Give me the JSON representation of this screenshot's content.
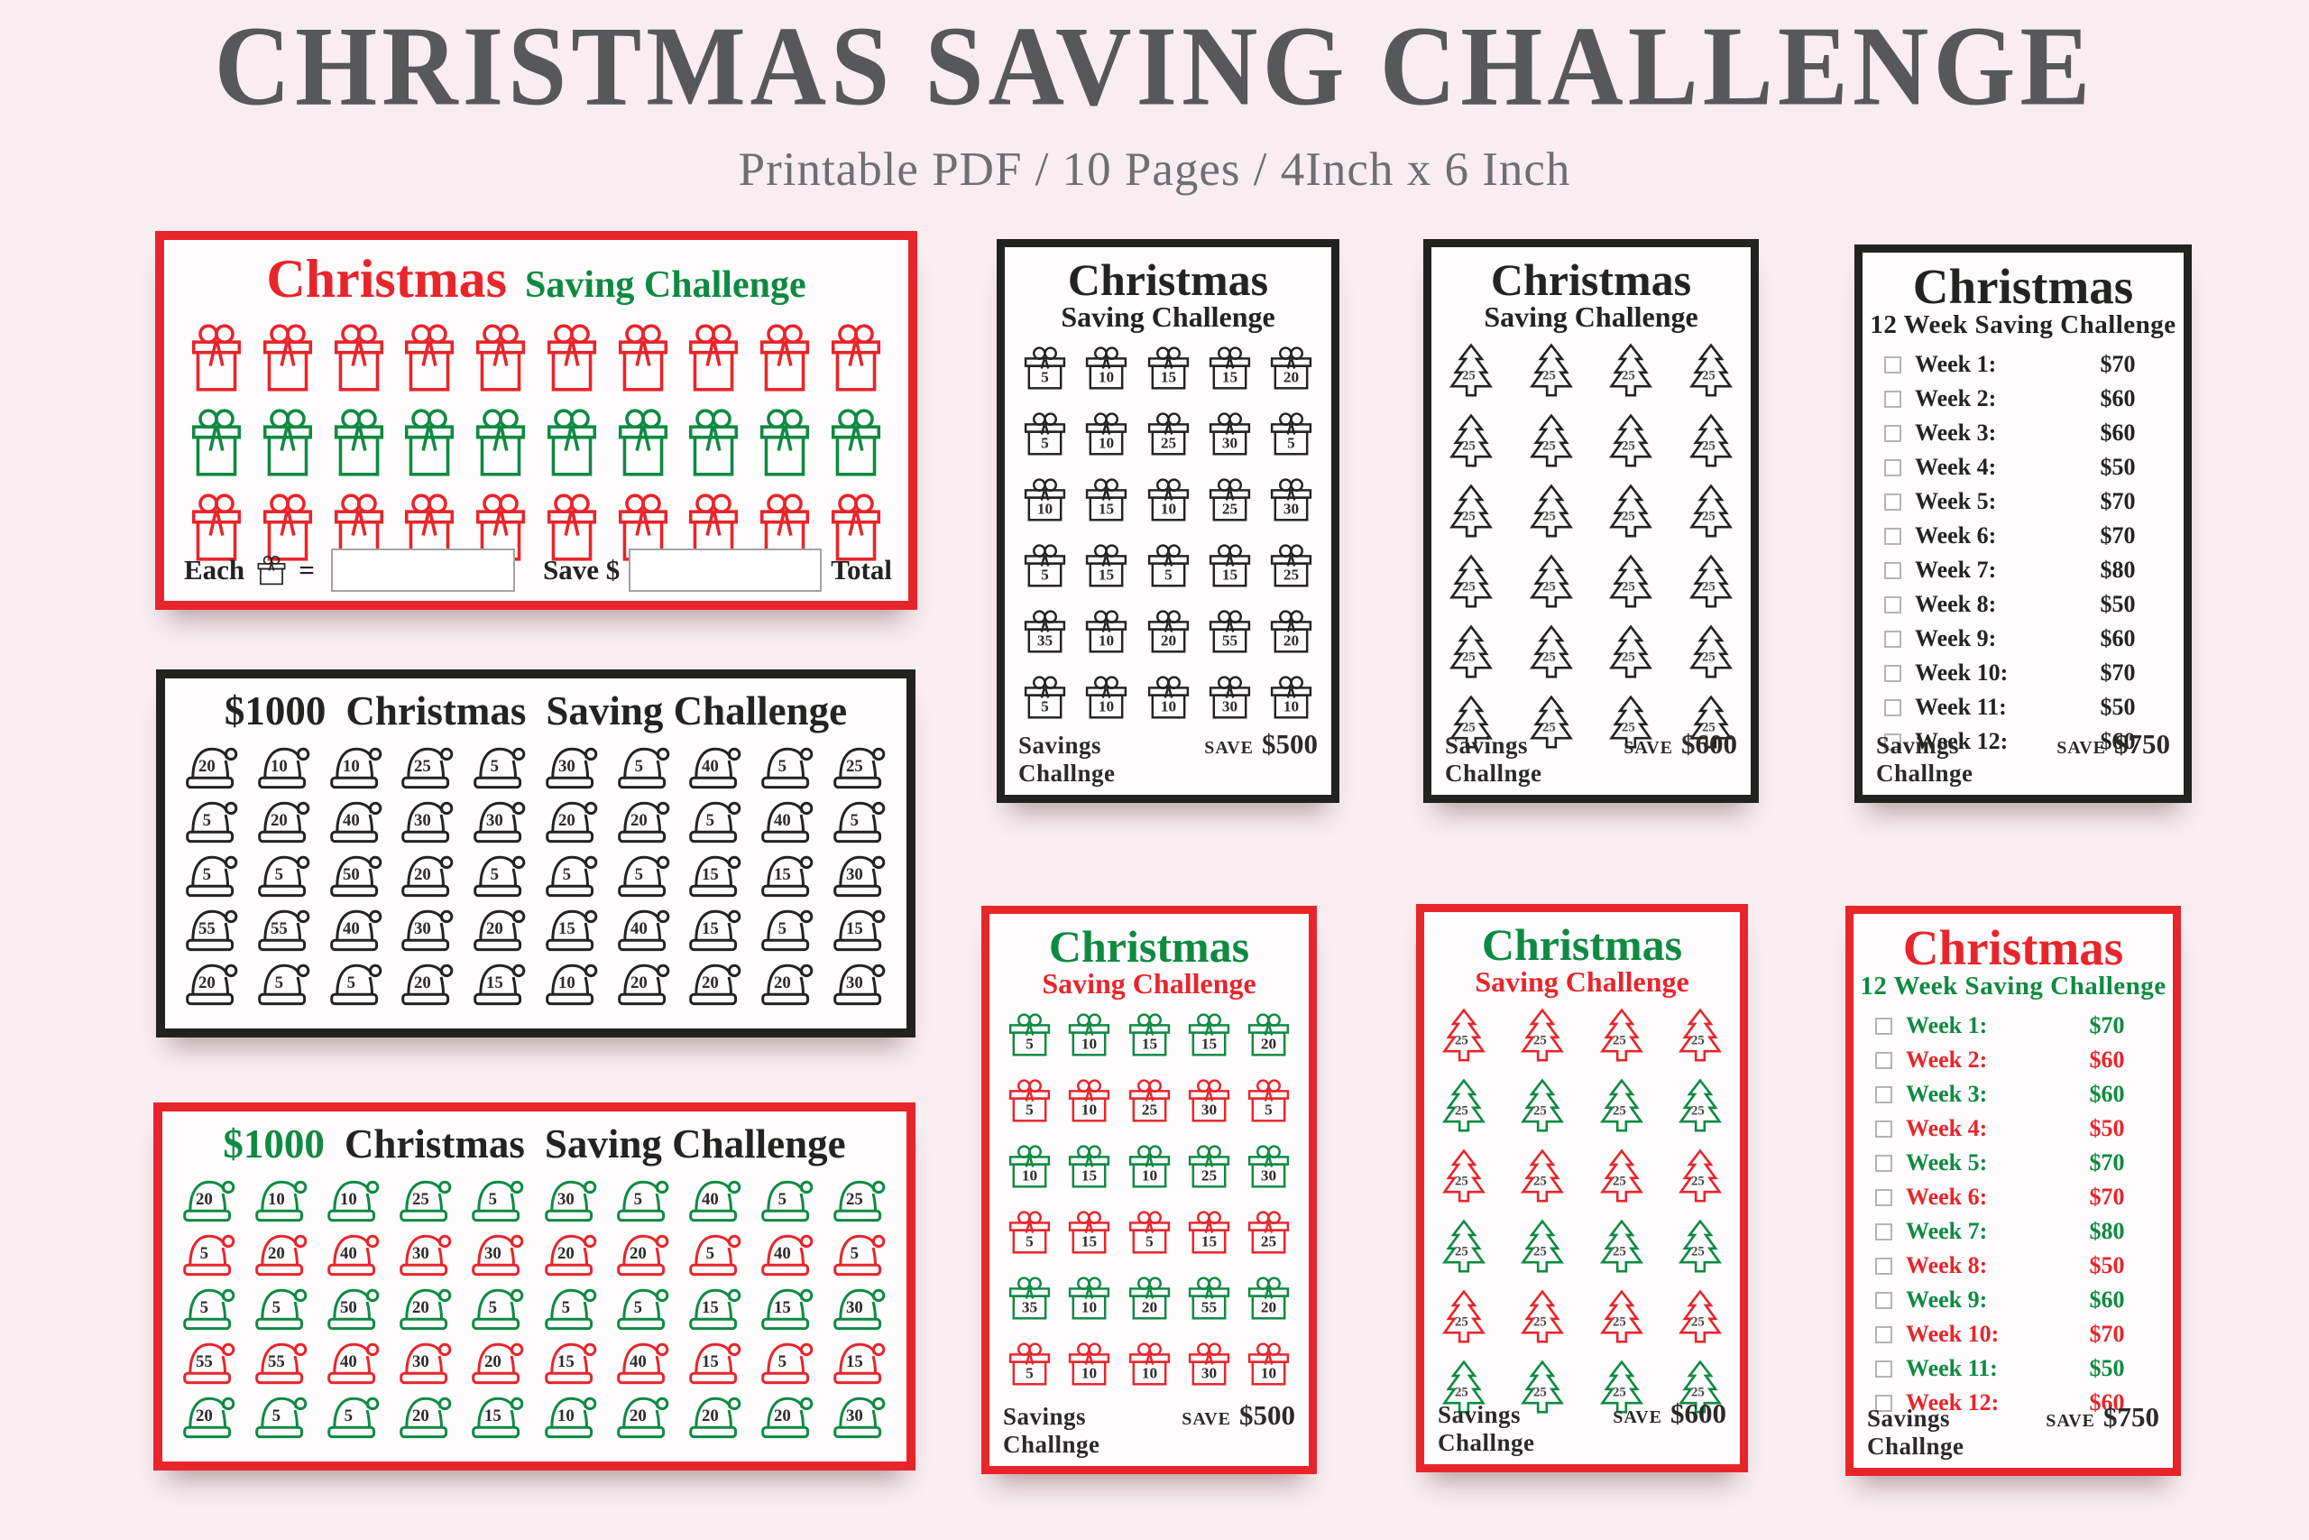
{
  "page": {
    "title": "CHRISTMAS SAVING CHALLENGE",
    "subtitle": "Printable PDF / 10 Pages / 4Inch x 6 Inch"
  },
  "colors": {
    "red": "#e8252b",
    "green": "#0e8a42",
    "black": "#232321"
  },
  "card_gift_fillin": {
    "title": {
      "main": "Christmas",
      "sub": "Saving Challenge"
    },
    "grid": {
      "type": "gift-big",
      "cols": 10,
      "rows": [
        {
          "color": "red"
        },
        {
          "color": "green"
        },
        {
          "color": "red"
        }
      ]
    },
    "footer": {
      "each": "Each",
      "eq": "=",
      "save": "Save $",
      "total": "Total"
    }
  },
  "card_hats_black": {
    "title": {
      "amount": "$1000",
      "main": "Christmas",
      "sub": "Saving Challenge"
    },
    "grid": {
      "type": "hat",
      "rows": [
        {
          "color": "black",
          "values": [
            20,
            10,
            10,
            25,
            5,
            30,
            5,
            40,
            5,
            25
          ]
        },
        {
          "color": "black",
          "values": [
            5,
            20,
            40,
            30,
            30,
            20,
            20,
            5,
            40,
            5
          ]
        },
        {
          "color": "black",
          "values": [
            5,
            5,
            50,
            20,
            5,
            5,
            5,
            15,
            15,
            30
          ]
        },
        {
          "color": "black",
          "values": [
            55,
            55,
            40,
            30,
            20,
            15,
            40,
            15,
            5,
            15
          ]
        },
        {
          "color": "black",
          "values": [
            20,
            5,
            5,
            20,
            15,
            10,
            20,
            20,
            20,
            30
          ]
        }
      ]
    }
  },
  "card_hats_color": {
    "title": {
      "amount": "$1000",
      "main": "Christmas",
      "sub": "Saving Challenge"
    },
    "grid": {
      "type": "hat",
      "rows": [
        {
          "color": "green",
          "values": [
            20,
            10,
            10,
            25,
            5,
            30,
            5,
            40,
            5,
            25
          ]
        },
        {
          "color": "red",
          "values": [
            5,
            20,
            40,
            30,
            30,
            20,
            20,
            5,
            40,
            5
          ]
        },
        {
          "color": "green",
          "values": [
            5,
            5,
            50,
            20,
            5,
            5,
            5,
            15,
            15,
            30
          ]
        },
        {
          "color": "red",
          "values": [
            55,
            55,
            40,
            30,
            20,
            15,
            40,
            15,
            5,
            15
          ]
        },
        {
          "color": "green",
          "values": [
            20,
            5,
            5,
            20,
            15,
            10,
            20,
            20,
            20,
            30
          ]
        }
      ]
    }
  },
  "card_gifts_black": {
    "title": {
      "main": "Christmas",
      "sub": "Saving Challenge"
    },
    "grid": {
      "type": "gift-num",
      "rows": [
        {
          "color": "black",
          "values": [
            5,
            10,
            15,
            15,
            20
          ]
        },
        {
          "color": "black",
          "values": [
            5,
            10,
            25,
            30,
            5
          ]
        },
        {
          "color": "black",
          "values": [
            10,
            15,
            10,
            25,
            30
          ]
        },
        {
          "color": "black",
          "values": [
            5,
            15,
            5,
            15,
            25
          ]
        },
        {
          "color": "black",
          "values": [
            35,
            10,
            20,
            55,
            20
          ]
        },
        {
          "color": "black",
          "values": [
            5,
            10,
            10,
            30,
            10
          ]
        }
      ]
    },
    "footer": {
      "brand": "Savings Challnge",
      "save_word": "SAVE",
      "amount": "$500"
    }
  },
  "card_gifts_color": {
    "title": {
      "main": "Christmas",
      "sub": "Saving Challenge"
    },
    "grid": {
      "type": "gift-num",
      "rows": [
        {
          "color": "green",
          "values": [
            5,
            10,
            15,
            15,
            20
          ]
        },
        {
          "color": "red",
          "values": [
            5,
            10,
            25,
            30,
            5
          ]
        },
        {
          "color": "green",
          "values": [
            10,
            15,
            10,
            25,
            30
          ]
        },
        {
          "color": "red",
          "values": [
            5,
            15,
            5,
            15,
            25
          ]
        },
        {
          "color": "green",
          "values": [
            35,
            10,
            20,
            55,
            20
          ]
        },
        {
          "color": "red",
          "values": [
            5,
            10,
            10,
            30,
            10
          ]
        }
      ]
    },
    "footer": {
      "brand": "Savings Challnge",
      "save_word": "SAVE",
      "amount": "$500"
    }
  },
  "card_trees_black": {
    "title": {
      "main": "Christmas",
      "sub": "Saving Challenge"
    },
    "grid": {
      "type": "tree",
      "rows": [
        {
          "color": "black",
          "values": [
            25,
            25,
            25,
            25
          ]
        },
        {
          "color": "black",
          "values": [
            25,
            25,
            25,
            25
          ]
        },
        {
          "color": "black",
          "values": [
            25,
            25,
            25,
            25
          ]
        },
        {
          "color": "black",
          "values": [
            25,
            25,
            25,
            25
          ]
        },
        {
          "color": "black",
          "values": [
            25,
            25,
            25,
            25
          ]
        },
        {
          "color": "black",
          "values": [
            25,
            25,
            25,
            25
          ]
        }
      ]
    },
    "footer": {
      "brand": "Savings Challnge",
      "save_word": "SAVE",
      "amount": "$600"
    }
  },
  "card_trees_color": {
    "title": {
      "main": "Christmas",
      "sub": "Saving Challenge"
    },
    "grid": {
      "type": "tree",
      "rows": [
        {
          "color": "red",
          "values": [
            25,
            25,
            25,
            25
          ]
        },
        {
          "color": "green",
          "values": [
            25,
            25,
            25,
            25
          ]
        },
        {
          "color": "red",
          "values": [
            25,
            25,
            25,
            25
          ]
        },
        {
          "color": "green",
          "values": [
            25,
            25,
            25,
            25
          ]
        },
        {
          "color": "red",
          "values": [
            25,
            25,
            25,
            25
          ]
        },
        {
          "color": "green",
          "values": [
            25,
            25,
            25,
            25
          ]
        }
      ]
    },
    "footer": {
      "brand": "Savings Challnge",
      "save_word": "SAVE",
      "amount": "$600"
    }
  },
  "card_weeks_black": {
    "title": {
      "main": "Christmas",
      "sub": "12 Week Saving Challenge"
    },
    "items": [
      {
        "label": "Week 1:",
        "amount": "$70",
        "color": "black"
      },
      {
        "label": "Week 2:",
        "amount": "$60",
        "color": "black"
      },
      {
        "label": "Week 3:",
        "amount": "$60",
        "color": "black"
      },
      {
        "label": "Week 4:",
        "amount": "$50",
        "color": "black"
      },
      {
        "label": "Week 5:",
        "amount": "$70",
        "color": "black"
      },
      {
        "label": "Week 6:",
        "amount": "$70",
        "color": "black"
      },
      {
        "label": "Week 7:",
        "amount": "$80",
        "color": "black"
      },
      {
        "label": "Week 8:",
        "amount": "$50",
        "color": "black"
      },
      {
        "label": "Week 9:",
        "amount": "$60",
        "color": "black"
      },
      {
        "label": "Week 10:",
        "amount": "$70",
        "color": "black"
      },
      {
        "label": "Week 11:",
        "amount": "$50",
        "color": "black"
      },
      {
        "label": "Week 12:",
        "amount": "$60",
        "color": "black"
      }
    ],
    "footer": {
      "brand": "Savings Challnge",
      "save_word": "SAVE",
      "amount": "$750"
    }
  },
  "card_weeks_color": {
    "title": {
      "main": "Christmas",
      "sub": "12 Week Saving Challenge"
    },
    "items": [
      {
        "label": "Week 1:",
        "amount": "$70",
        "color": "green"
      },
      {
        "label": "Week 2:",
        "amount": "$60",
        "color": "red"
      },
      {
        "label": "Week 3:",
        "amount": "$60",
        "color": "green"
      },
      {
        "label": "Week 4:",
        "amount": "$50",
        "color": "red"
      },
      {
        "label": "Week 5:",
        "amount": "$70",
        "color": "green"
      },
      {
        "label": "Week 6:",
        "amount": "$70",
        "color": "red"
      },
      {
        "label": "Week 7:",
        "amount": "$80",
        "color": "green"
      },
      {
        "label": "Week 8:",
        "amount": "$50",
        "color": "red"
      },
      {
        "label": "Week 9:",
        "amount": "$60",
        "color": "green"
      },
      {
        "label": "Week 10:",
        "amount": "$70",
        "color": "red"
      },
      {
        "label": "Week 11:",
        "amount": "$50",
        "color": "green"
      },
      {
        "label": "Week 12:",
        "amount": "$60",
        "color": "red"
      }
    ],
    "footer": {
      "brand": "Savings Challnge",
      "save_word": "SAVE",
      "amount": "$750"
    }
  }
}
